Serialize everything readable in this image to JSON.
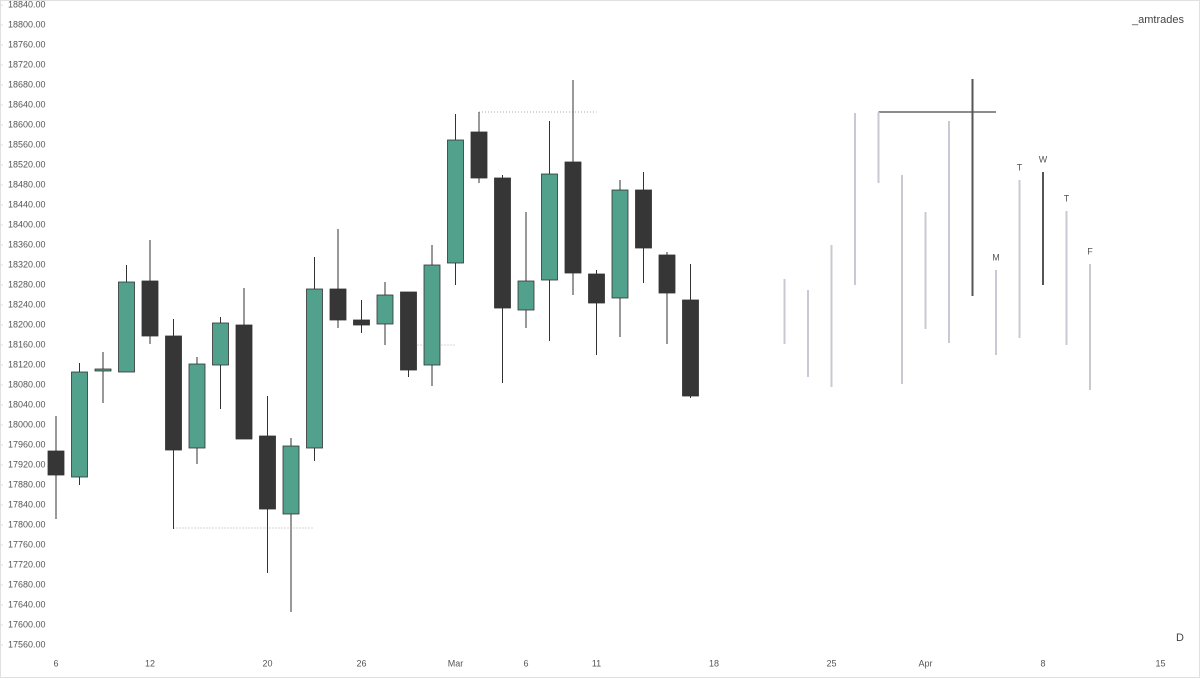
{
  "chart_data": {
    "type": "candlestick",
    "watermark": "_amtrades",
    "interval": "D",
    "categories": [
      "6",
      null,
      null,
      null,
      "12",
      null,
      null,
      null,
      null,
      "20",
      null,
      null,
      null,
      "26",
      null,
      null,
      null,
      "Mar",
      null,
      null,
      "6",
      null,
      null,
      "11",
      null,
      null,
      null,
      null,
      "18",
      null,
      null,
      null,
      null,
      "25",
      null,
      null,
      null,
      "Apr",
      null,
      null,
      null,
      null,
      "8",
      null,
      null,
      null,
      null,
      "15"
    ],
    "open": [
      17948,
      17896,
      18108,
      18106,
      18288,
      18178,
      17954,
      18120,
      18200,
      17978,
      17822,
      17954,
      18272,
      18210,
      18202,
      18266,
      18120,
      18324,
      18586,
      18494,
      18230,
      18290,
      18526,
      18302,
      18254,
      18470,
      18340,
      18250,
      null,
      null,
      null,
      null,
      null,
      null,
      null,
      null,
      null,
      null,
      null,
      null,
      null,
      null,
      null,
      null,
      null,
      null,
      null,
      null
    ],
    "high": [
      18018,
      18124,
      18146,
      18320,
      18370,
      18212,
      18136,
      18216,
      18274,
      18058,
      17974,
      18336,
      18392,
      18250,
      18286,
      18266,
      18360,
      18622,
      18626,
      18500,
      18426,
      18608,
      18690,
      18310,
      18490,
      18506,
      18346,
      18322,
      null,
      null,
      null,
      null,
      null,
      null,
      null,
      null,
      null,
      null,
      null,
      null,
      null,
      null,
      null,
      null,
      null,
      null,
      null,
      null
    ],
    "low": [
      17812,
      17880,
      18044,
      18106,
      18162,
      17792,
      17922,
      18032,
      17972,
      17704,
      17626,
      17928,
      18194,
      18184,
      18160,
      18096,
      18078,
      18280,
      18484,
      18084,
      18194,
      18168,
      18260,
      18140,
      18176,
      18284,
      18162,
      18054,
      null,
      null,
      null,
      null,
      null,
      null,
      null,
      null,
      null,
      null,
      null,
      null,
      null,
      null,
      null,
      null,
      null,
      null,
      null,
      null
    ],
    "close": [
      17900,
      18106,
      18112,
      18286,
      18178,
      17950,
      18122,
      18204,
      17972,
      17832,
      17958,
      18272,
      18210,
      18200,
      18260,
      18110,
      18320,
      18570,
      18494,
      18234,
      18288,
      18502,
      18304,
      18244,
      18470,
      18354,
      18264,
      18058,
      null,
      null,
      null,
      null,
      null,
      null,
      null,
      null,
      null,
      null,
      null,
      null,
      null,
      null,
      null,
      null,
      null,
      null,
      null,
      null
    ],
    "up_color": "#52a18d",
    "down_color": "#363636",
    "projection": {
      "high": [
        null,
        null,
        null,
        null,
        null,
        null,
        null,
        null,
        null,
        null,
        null,
        null,
        null,
        null,
        null,
        null,
        null,
        null,
        null,
        null,
        null,
        null,
        null,
        null,
        null,
        null,
        null,
        null,
        null,
        null,
        null,
        18292,
        18270,
        18360,
        18624,
        18626,
        18500,
        18426,
        18608,
        18692,
        18310,
        18490,
        18506,
        18428,
        18322,
        null,
        null,
        null
      ],
      "low": [
        null,
        null,
        null,
        null,
        null,
        null,
        null,
        null,
        null,
        null,
        null,
        null,
        null,
        null,
        null,
        null,
        null,
        null,
        null,
        null,
        null,
        null,
        null,
        null,
        null,
        null,
        null,
        null,
        null,
        null,
        null,
        18162,
        18096,
        18076,
        18280,
        18484,
        18082,
        18192,
        18164,
        18258,
        18140,
        18174,
        18280,
        18160,
        18070,
        null,
        null,
        null
      ],
      "labels": [
        null,
        null,
        null,
        null,
        null,
        null,
        null,
        null,
        null,
        null,
        null,
        null,
        null,
        null,
        null,
        null,
        null,
        null,
        null,
        null,
        null,
        null,
        null,
        null,
        null,
        null,
        null,
        null,
        null,
        null,
        null,
        null,
        null,
        null,
        null,
        null,
        null,
        null,
        null,
        null,
        "M",
        "T",
        "W",
        "T",
        "F",
        null,
        null,
        null
      ],
      "colors": [
        null,
        null,
        null,
        null,
        null,
        null,
        null,
        null,
        null,
        null,
        null,
        null,
        null,
        null,
        null,
        null,
        null,
        null,
        null,
        null,
        null,
        null,
        null,
        null,
        null,
        null,
        null,
        null,
        null,
        null,
        null,
        "#c9c9d3",
        "#c9c9d3",
        "#c9c9d3",
        "#c9c9d3",
        "#c9c9d3",
        "#c9c9d3",
        "#c9c9d3",
        "#c9c9d3",
        "#555555",
        "#c9c9d3",
        "#c9c9d3",
        "#555555",
        "#c9c9d3",
        "#c9c9d3",
        null,
        null,
        null
      ]
    },
    "levels": [
      {
        "value": 17794,
        "start": 5,
        "end": 11,
        "style": "dotted"
      },
      {
        "value": 18626,
        "start": 18,
        "end": 23,
        "style": "dotted"
      },
      {
        "value": 18160,
        "start": 15,
        "end": 17,
        "style": "dotted"
      },
      {
        "value": 18626,
        "start": 35,
        "end": 40,
        "style": "solid"
      }
    ],
    "ylim": [
      17540,
      18846
    ],
    "yticks": [
      {
        "value": 17560,
        "label": "17560.00"
      },
      {
        "value": 17600,
        "label": "17600.00"
      },
      {
        "value": 17640,
        "label": "17640.00"
      },
      {
        "value": 17680,
        "label": "17680.00"
      },
      {
        "value": 17720,
        "label": "17720.00"
      },
      {
        "value": 17760,
        "label": "17760.00"
      },
      {
        "value": 17800,
        "label": "17800.00"
      },
      {
        "value": 17840,
        "label": "17840.00"
      },
      {
        "value": 17880,
        "label": "17880.00"
      },
      {
        "value": 17920,
        "label": "17920.00"
      },
      {
        "value": 17960,
        "label": "17960.00"
      },
      {
        "value": 18000,
        "label": "18000.00"
      },
      {
        "value": 18040,
        "label": "18040.00"
      },
      {
        "value": 18080,
        "label": "18080.00"
      },
      {
        "value": 18120,
        "label": "18120.00"
      },
      {
        "value": 18160,
        "label": "18160.00"
      },
      {
        "value": 18200,
        "label": "18200.00"
      },
      {
        "value": 18240,
        "label": "18240.00"
      },
      {
        "value": 18280,
        "label": "18280.00"
      },
      {
        "value": 18320,
        "label": "18320.00"
      },
      {
        "value": 18360,
        "label": "18360.00"
      },
      {
        "value": 18400,
        "label": "18400.00"
      },
      {
        "value": 18440,
        "label": "18440.00"
      },
      {
        "value": 18480,
        "label": "18480.00"
      },
      {
        "value": 18520,
        "label": "18520.00"
      },
      {
        "value": 18560,
        "label": "18560.00"
      },
      {
        "value": 18600,
        "label": "18600.00"
      },
      {
        "value": 18640,
        "label": "18640.00"
      },
      {
        "value": 18680,
        "label": "18680.00"
      },
      {
        "value": 18720,
        "label": "18720.00"
      },
      {
        "value": 18760,
        "label": "18760.00"
      },
      {
        "value": 18800,
        "label": "18800.00"
      },
      {
        "value": 18840,
        "label": "18840.00"
      }
    ]
  }
}
